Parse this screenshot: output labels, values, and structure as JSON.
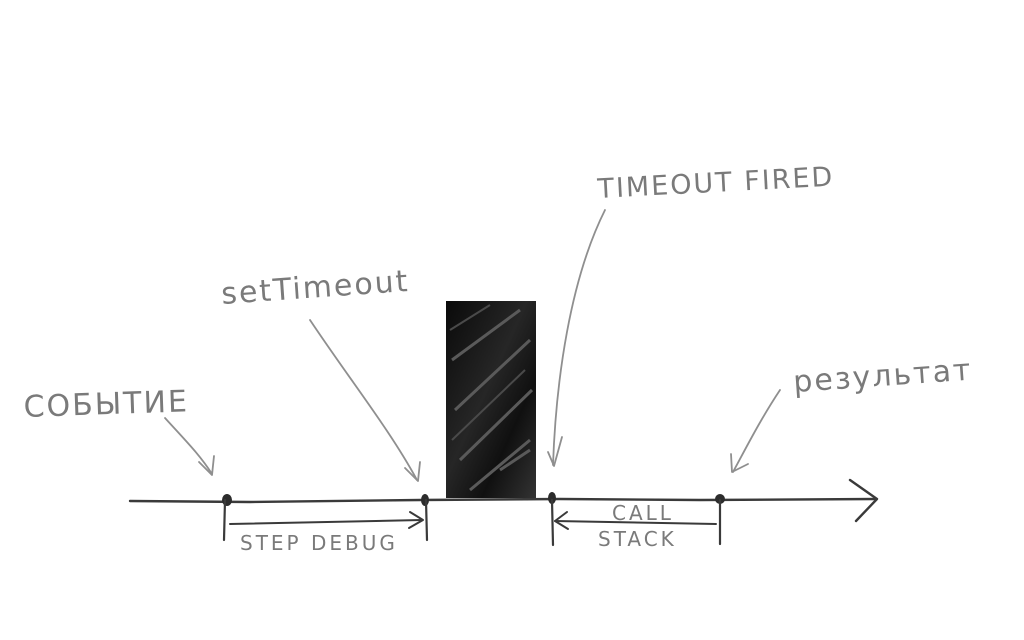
{
  "labels": {
    "event": "СОБЫТИЕ",
    "set_timeout": "setTimeout",
    "timeout_fired": "TIMEOUT FIRED",
    "result": "результат",
    "step_debug": "STEP DEBUG",
    "call": "CALL",
    "stack": "STACK"
  },
  "colors": {
    "ink": "#3a3a3a",
    "pencil": "#8f8f8f",
    "block": "#141414",
    "background": "#ffffff"
  }
}
